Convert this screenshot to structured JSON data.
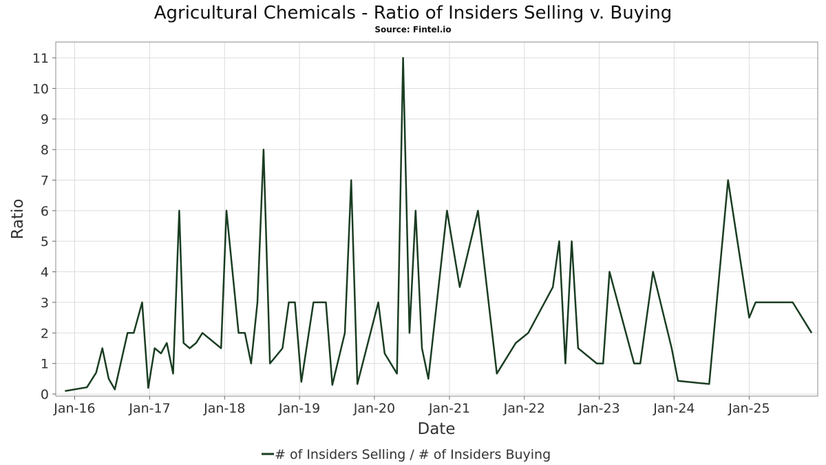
{
  "chart_data": {
    "type": "line",
    "title": "Agricultural Chemicals - Ratio of Insiders Selling v. Buying",
    "subtitle": "Source: Fintel.io",
    "xlabel": "Date",
    "ylabel": "Ratio",
    "x_ticks": [
      "Jan-16",
      "Jan-17",
      "Jan-18",
      "Jan-19",
      "Jan-20",
      "Jan-21",
      "Jan-22",
      "Jan-23",
      "Jan-24",
      "Jan-25"
    ],
    "y_ticks": [
      "0",
      "1",
      "2",
      "3",
      "4",
      "5",
      "6",
      "7",
      "8",
      "9",
      "10",
      "11"
    ],
    "xlim": [
      "2015-10-01",
      "2025-12-01"
    ],
    "ylim": [
      0,
      11.5
    ],
    "grid": true,
    "legend_position": "bottom-center",
    "series": [
      {
        "name": "# of Insiders Selling / # of Insiders Buying",
        "color": "#1a3d22",
        "points": [
          [
            "2015-11-15",
            0.1
          ],
          [
            "2016-03-01",
            0.22
          ],
          [
            "2016-04-15",
            0.7
          ],
          [
            "2016-05-15",
            1.5
          ],
          [
            "2016-06-15",
            0.5
          ],
          [
            "2016-07-15",
            0.15
          ],
          [
            "2016-09-15",
            2.0
          ],
          [
            "2016-10-15",
            2.0
          ],
          [
            "2016-11-25",
            3.0
          ],
          [
            "2016-12-25",
            0.2
          ],
          [
            "2017-01-25",
            1.5
          ],
          [
            "2017-02-25",
            1.33
          ],
          [
            "2017-03-25",
            1.67
          ],
          [
            "2017-04-25",
            0.67
          ],
          [
            "2017-05-25",
            6.0
          ],
          [
            "2017-06-15",
            1.67
          ],
          [
            "2017-07-15",
            1.5
          ],
          [
            "2017-08-15",
            1.67
          ],
          [
            "2017-09-15",
            2.0
          ],
          [
            "2017-12-15",
            1.5
          ],
          [
            "2018-01-10",
            6.0
          ],
          [
            "2018-03-10",
            2.0
          ],
          [
            "2018-04-10",
            2.0
          ],
          [
            "2018-05-10",
            1.0
          ],
          [
            "2018-06-10",
            3.0
          ],
          [
            "2018-07-10",
            8.0
          ],
          [
            "2018-08-10",
            1.0
          ],
          [
            "2018-09-10",
            1.25
          ],
          [
            "2018-10-10",
            1.5
          ],
          [
            "2018-11-10",
            3.0
          ],
          [
            "2018-12-10",
            3.0
          ],
          [
            "2019-01-10",
            0.4
          ],
          [
            "2019-03-10",
            3.0
          ],
          [
            "2019-05-10",
            3.0
          ],
          [
            "2019-06-10",
            0.3
          ],
          [
            "2019-08-10",
            2.0
          ],
          [
            "2019-09-10",
            7.0
          ],
          [
            "2019-10-10",
            0.33
          ],
          [
            "2020-01-20",
            3.0
          ],
          [
            "2020-02-20",
            1.33
          ],
          [
            "2020-04-20",
            0.67
          ],
          [
            "2020-05-20",
            11.0
          ],
          [
            "2020-06-20",
            2.0
          ],
          [
            "2020-07-20",
            6.0
          ],
          [
            "2020-08-20",
            1.5
          ],
          [
            "2020-09-20",
            0.5
          ],
          [
            "2020-12-20",
            6.0
          ],
          [
            "2021-02-20",
            3.5
          ],
          [
            "2021-05-20",
            6.0
          ],
          [
            "2021-08-20",
            0.67
          ],
          [
            "2021-11-20",
            1.67
          ],
          [
            "2022-01-20",
            2.0
          ],
          [
            "2022-05-20",
            3.5
          ],
          [
            "2022-06-20",
            5.0
          ],
          [
            "2022-07-20",
            1.0
          ],
          [
            "2022-08-20",
            5.0
          ],
          [
            "2022-09-20",
            1.5
          ],
          [
            "2022-12-20",
            1.0
          ],
          [
            "2023-01-20",
            1.0
          ],
          [
            "2023-02-20",
            4.0
          ],
          [
            "2023-06-20",
            1.0
          ],
          [
            "2023-07-20",
            1.0
          ],
          [
            "2023-09-20",
            4.0
          ],
          [
            "2023-12-20",
            1.5
          ],
          [
            "2024-01-20",
            0.43
          ],
          [
            "2024-06-20",
            0.33
          ],
          [
            "2024-09-20",
            7.0
          ],
          [
            "2025-01-01",
            2.5
          ],
          [
            "2025-02-01",
            3.0
          ],
          [
            "2025-08-01",
            3.0
          ],
          [
            "2025-11-01",
            2.0
          ]
        ]
      }
    ]
  }
}
